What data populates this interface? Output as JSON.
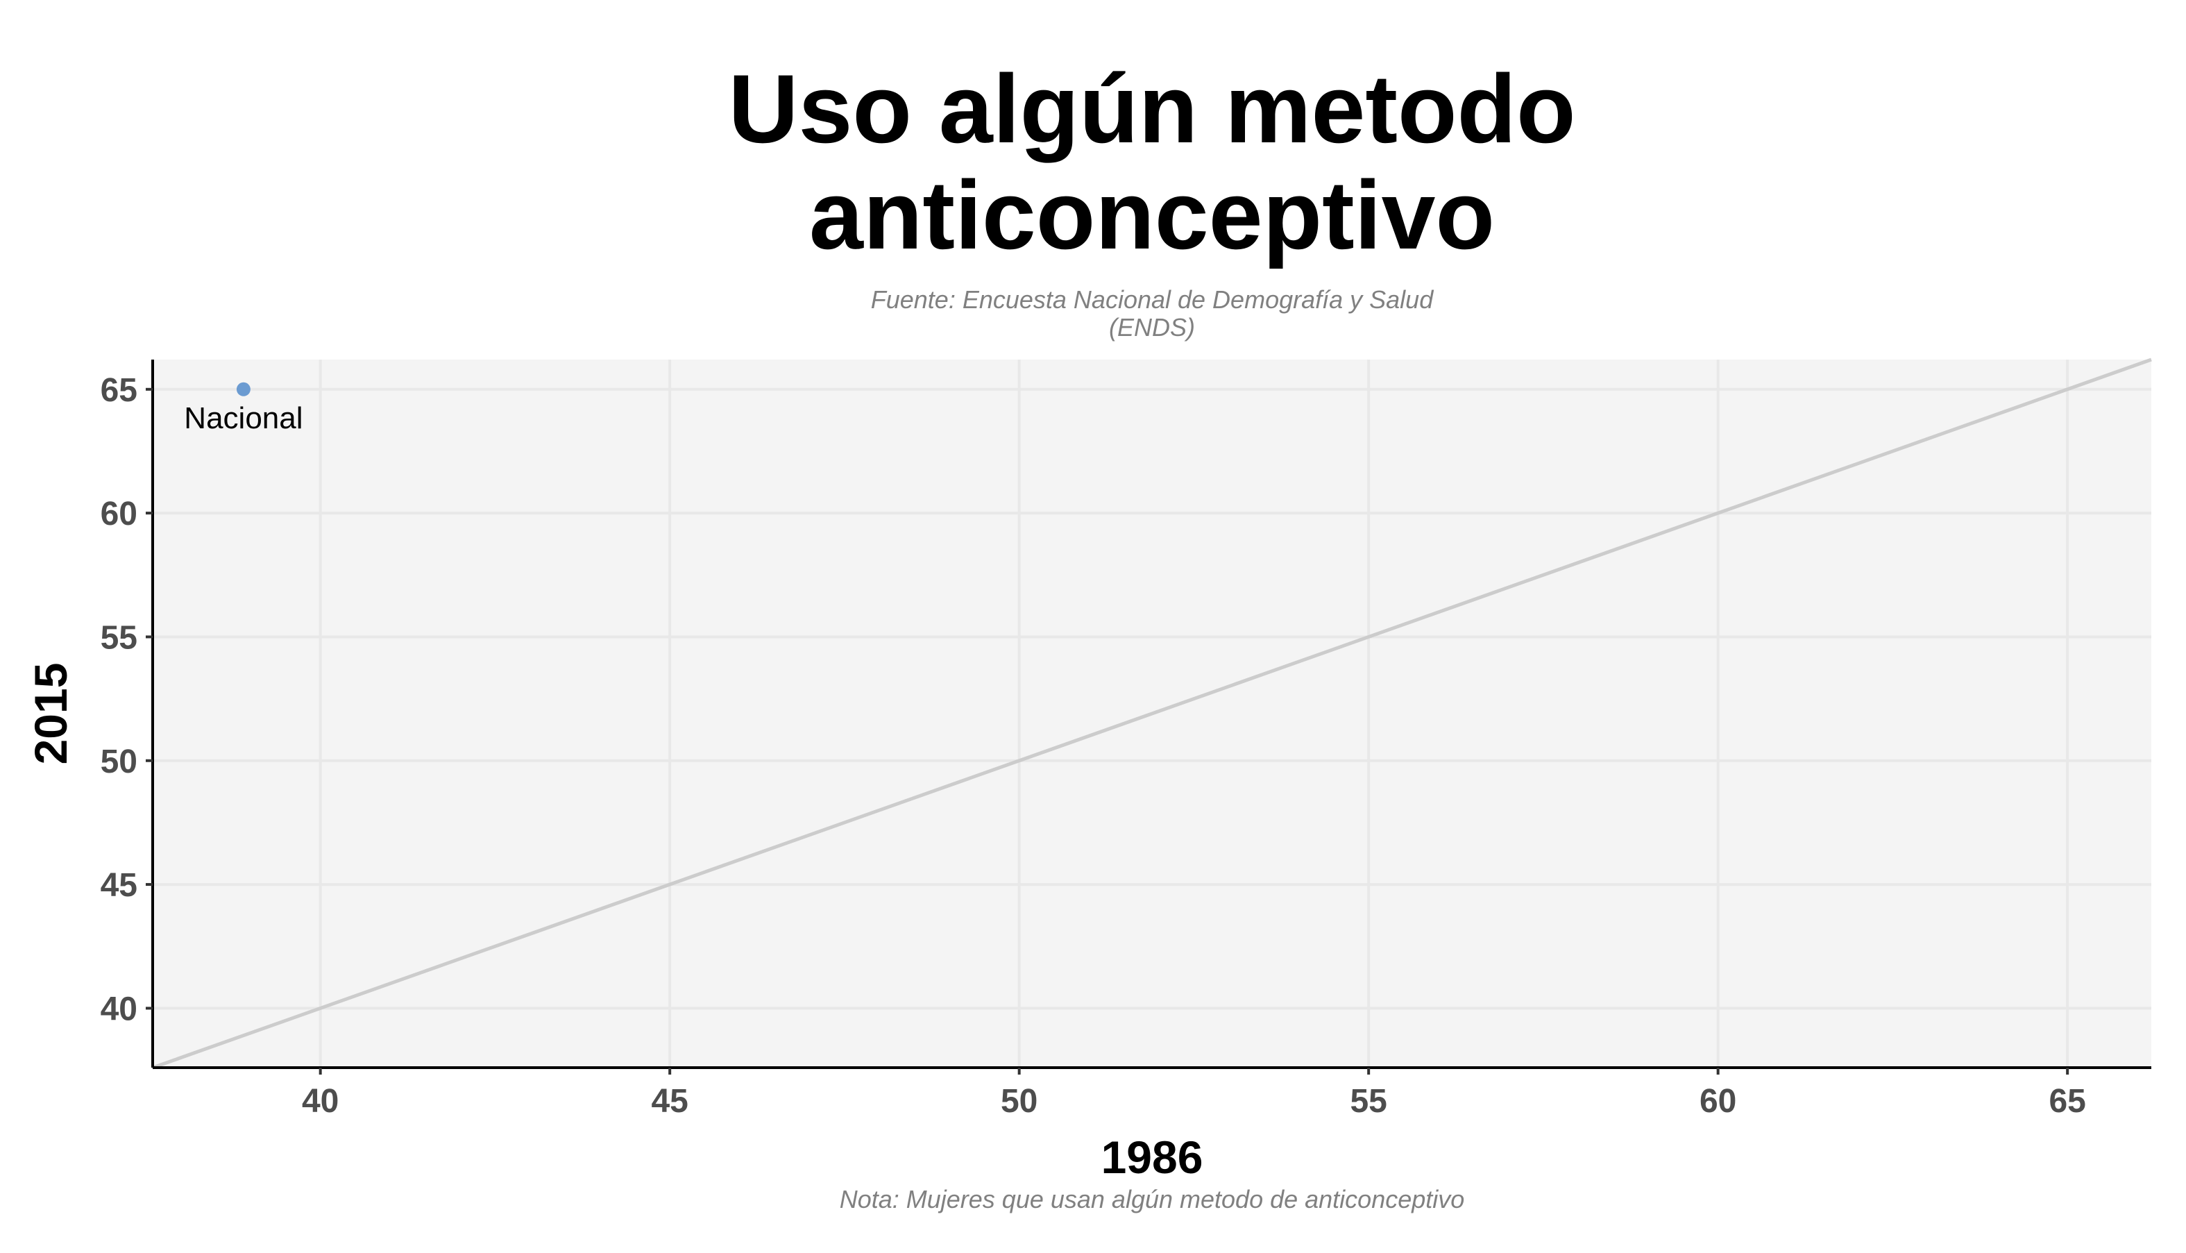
{
  "chart_data": {
    "type": "scatter",
    "title": [
      "Uso algún metodo",
      "anticonceptivo"
    ],
    "subtitle": [
      "Fuente: Encuesta Nacional de Demografía y Salud",
      "(ENDS)"
    ],
    "caption": "Nota: Mujeres que usan algún metodo de anticonceptivo",
    "xlabel": "1986",
    "ylabel": "2015",
    "xlim": [
      37.6,
      66.2
    ],
    "ylim": [
      37.6,
      66.2
    ],
    "x_ticks": [
      40,
      45,
      50,
      55,
      60,
      65
    ],
    "y_ticks": [
      40,
      45,
      50,
      55,
      60,
      65
    ],
    "grid": true,
    "reference_line": {
      "type": "identity",
      "slope": 1,
      "intercept": 0,
      "color": "#cccccc"
    },
    "points": [
      {
        "label": "Nacional",
        "x": 38.9,
        "y": 65.0,
        "color": "#6b9bd1"
      }
    ],
    "colors": {
      "panel_background": "#f4f4f4",
      "gridline": "#e8e8e8",
      "axis_line": "#000000",
      "tick_label": "#4d4d4d",
      "muted_text": "#808080"
    }
  }
}
